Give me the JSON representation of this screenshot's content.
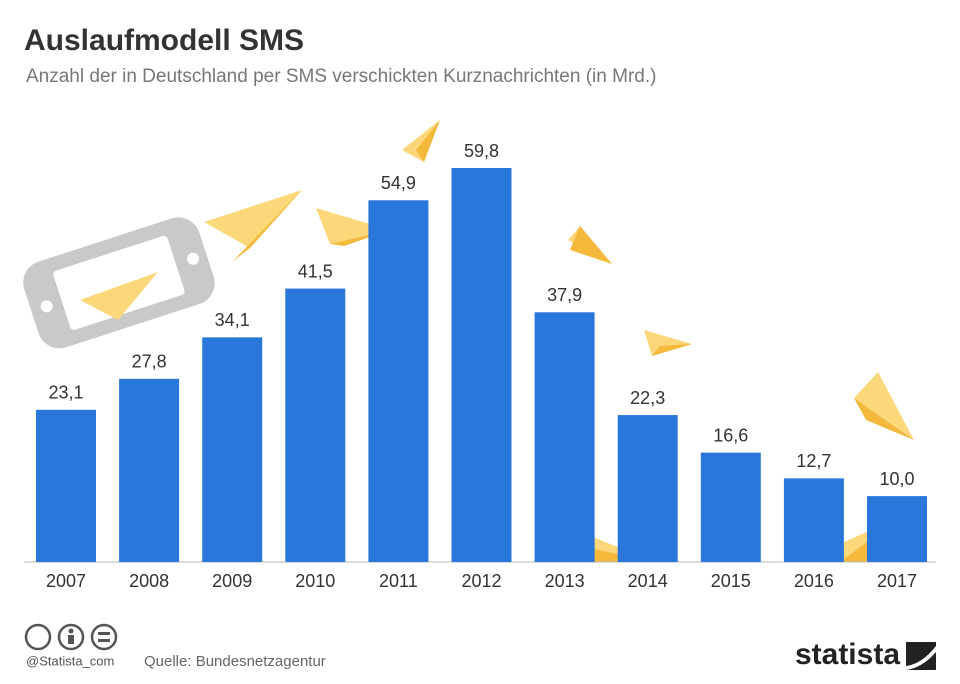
{
  "chart_data": {
    "type": "bar",
    "title": "Auslaufmodell SMS",
    "subtitle": "Anzahl der in Deutschland per SMS verschickten Kurznachrichten (in Mrd.)",
    "categories": [
      "2007",
      "2008",
      "2009",
      "2010",
      "2011",
      "2012",
      "2013",
      "2014",
      "2015",
      "2016",
      "2017"
    ],
    "values": [
      23.1,
      27.8,
      34.1,
      41.5,
      54.9,
      59.8,
      37.9,
      22.3,
      16.6,
      12.7,
      10.0
    ],
    "value_labels": [
      "23,1",
      "27,8",
      "34,1",
      "41,5",
      "54,9",
      "59,8",
      "37,9",
      "22,3",
      "16,6",
      "12,7",
      "10,0"
    ],
    "color": "#2a77dc"
  },
  "footer": {
    "credit": "@Statista_com",
    "source": "Quelle: Bundesnetzagentur",
    "brand": "statista"
  }
}
